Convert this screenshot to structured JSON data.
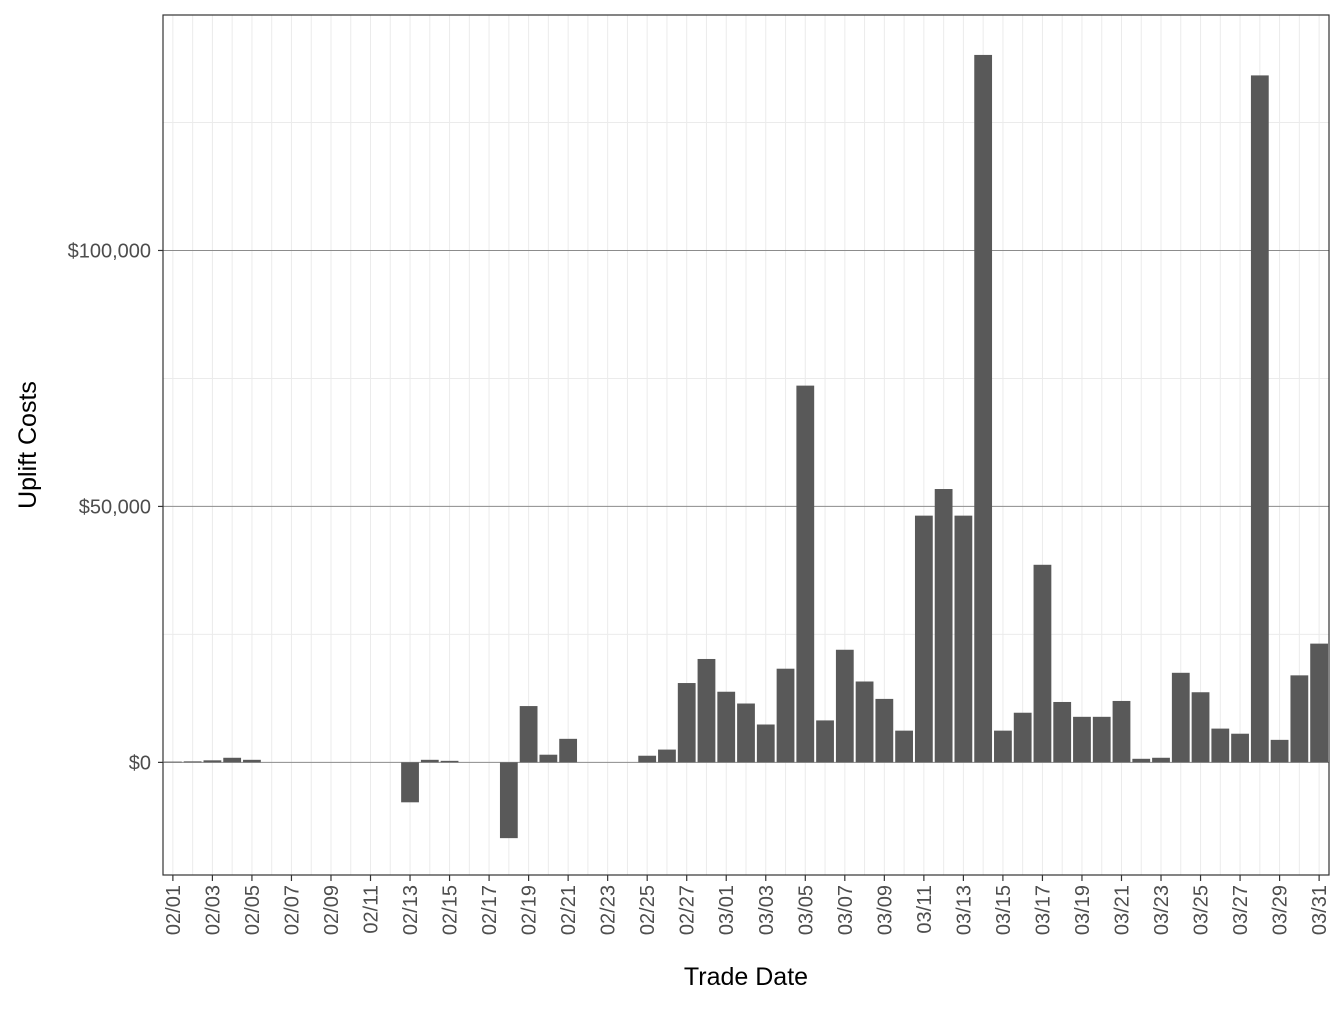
{
  "chart_data": {
    "type": "bar",
    "title": "",
    "xlabel": "Trade Date",
    "ylabel": "Uplift Costs",
    "ylim": [
      -22000,
      146000
    ],
    "y_ticks": [
      0,
      50000,
      100000
    ],
    "y_tick_labels": [
      "$0",
      "$50,000",
      "$100,000"
    ],
    "grid": true,
    "legend": "none",
    "bar_color": "#595959",
    "categories": [
      "02/01",
      "02/02",
      "02/03",
      "02/04",
      "02/05",
      "02/06",
      "02/07",
      "02/08",
      "02/09",
      "02/10",
      "02/11",
      "02/12",
      "02/13",
      "02/14",
      "02/15",
      "02/16",
      "02/17",
      "02/18",
      "02/19",
      "02/20",
      "02/21",
      "02/22",
      "02/23",
      "02/24",
      "02/25",
      "02/26",
      "02/27",
      "02/28",
      "03/01",
      "03/02",
      "03/03",
      "03/04",
      "03/05",
      "03/06",
      "03/07",
      "03/08",
      "03/09",
      "03/10",
      "03/11",
      "03/12",
      "03/13",
      "03/14",
      "03/15",
      "03/16",
      "03/17",
      "03/18",
      "03/19",
      "03/20",
      "03/21",
      "03/22",
      "03/23",
      "03/24",
      "03/25",
      "03/26",
      "03/27",
      "03/28",
      "03/29",
      "03/30",
      "03/31"
    ],
    "x_tick_labels": [
      "02/01",
      "02/03",
      "02/05",
      "02/07",
      "02/09",
      "02/11",
      "02/13",
      "02/15",
      "02/17",
      "02/19",
      "02/21",
      "02/23",
      "02/25",
      "02/27",
      "03/01",
      "03/03",
      "03/05",
      "03/07",
      "03/09",
      "03/11",
      "03/13",
      "03/15",
      "03/17",
      "03/19",
      "03/21",
      "03/23",
      "03/25",
      "03/27",
      "03/29",
      "03/31"
    ],
    "values": [
      150,
      200,
      400,
      900,
      500,
      0,
      0,
      0,
      0,
      0,
      0,
      0,
      -7800,
      500,
      300,
      0,
      0,
      -14800,
      11000,
      1500,
      4600,
      0,
      0,
      0,
      1300,
      2500,
      15500,
      20200,
      13800,
      11500,
      7400,
      18300,
      73600,
      8200,
      22000,
      15800,
      12400,
      6200,
      48200,
      53400,
      48200,
      138200,
      6200,
      9700,
      38600,
      11800,
      8900,
      8900,
      12000,
      700,
      900,
      17500,
      13700,
      6600,
      5600,
      134200,
      4400,
      17000,
      23200
    ]
  }
}
